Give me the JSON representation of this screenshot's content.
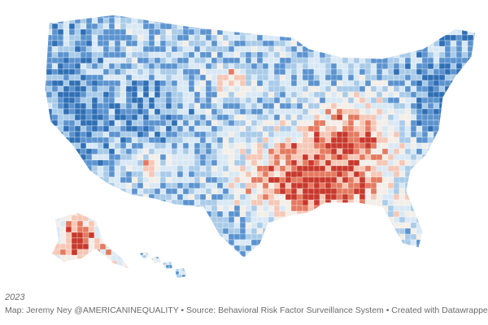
{
  "map": {
    "type": "choropleth",
    "region": "United States counties",
    "palette": {
      "strong_blue": "#2f6fb5",
      "blue": "#5b93cf",
      "light_blue": "#a9cbe8",
      "pale_blue": "#d9e8f5",
      "neutral": "#f3eee8",
      "pale_red": "#f6c7b6",
      "red": "#e47a60",
      "strong_red": "#c8382c",
      "state_border": "#ffffff"
    }
  },
  "caption": {
    "year": "2023",
    "source": "Map: Jeremy Ney @AMERICANINEQUALITY • Source: Behavioral Risk Factor Surveillance System • Created with Datawrapper"
  }
}
